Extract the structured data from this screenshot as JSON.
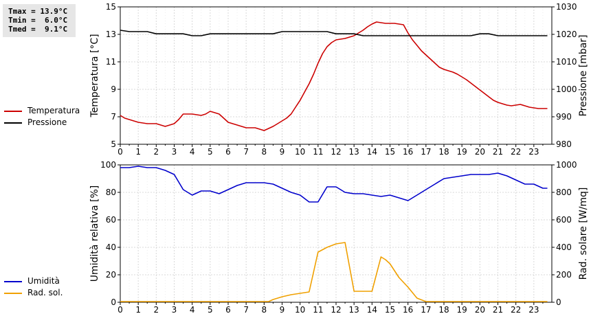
{
  "stats": {
    "lines": [
      "Tmax = 13.9°C",
      "Tmin =  6.0°C",
      "Tmed =  9.1°C"
    ]
  },
  "chart_data": [
    {
      "type": "line",
      "x_ticks": [
        0,
        1,
        2,
        3,
        4,
        5,
        6,
        7,
        8,
        9,
        10,
        11,
        12,
        13,
        14,
        15,
        16,
        17,
        18,
        19,
        20,
        21,
        22,
        23
      ],
      "xlim": [
        0,
        24
      ],
      "ylabel": "Temperatura [°C]",
      "ylabel_right": "Pressione [mbar]",
      "ylim": [
        5,
        15
      ],
      "y_ticks": [
        5,
        7,
        9,
        11,
        13,
        15
      ],
      "ylim_right": [
        980,
        1030
      ],
      "y_ticks_right": [
        980,
        990,
        1000,
        1010,
        1020,
        1030
      ],
      "grid": true,
      "legend_position": "left",
      "series": [
        {
          "name": "Temperatura",
          "color": "#cc0000",
          "axis": "left",
          "x": [
            0,
            0.25,
            0.5,
            0.75,
            1,
            1.25,
            1.5,
            1.75,
            2,
            2.25,
            2.5,
            2.75,
            3,
            3.25,
            3.5,
            3.75,
            4,
            4.25,
            4.5,
            4.75,
            5,
            5.25,
            5.5,
            5.75,
            6,
            6.25,
            6.5,
            6.75,
            7,
            7.25,
            7.5,
            7.75,
            8,
            8.25,
            8.5,
            8.75,
            9,
            9.25,
            9.5,
            9.75,
            10,
            10.25,
            10.5,
            10.75,
            11,
            11.25,
            11.5,
            11.75,
            12,
            12.25,
            12.5,
            12.75,
            13,
            13.25,
            13.5,
            13.75,
            14,
            14.25,
            14.5,
            14.75,
            15,
            15.25,
            15.5,
            15.75,
            16,
            16.25,
            16.5,
            16.75,
            17,
            17.25,
            17.5,
            17.75,
            18,
            18.25,
            18.5,
            18.75,
            19,
            19.25,
            19.5,
            19.75,
            20,
            20.25,
            20.5,
            20.75,
            21,
            21.25,
            21.5,
            21.75,
            22,
            22.25,
            22.5,
            22.75,
            23,
            23.25,
            23.5,
            23.75
          ],
          "values": [
            7.1,
            6.9,
            6.8,
            6.7,
            6.6,
            6.55,
            6.5,
            6.5,
            6.5,
            6.4,
            6.3,
            6.4,
            6.5,
            6.8,
            7.2,
            7.2,
            7.2,
            7.15,
            7.1,
            7.2,
            7.4,
            7.3,
            7.2,
            6.9,
            6.6,
            6.5,
            6.4,
            6.3,
            6.2,
            6.2,
            6.2,
            6.1,
            6.0,
            6.15,
            6.3,
            6.5,
            6.7,
            6.9,
            7.2,
            7.7,
            8.2,
            8.8,
            9.4,
            10.1,
            10.9,
            11.6,
            12.1,
            12.4,
            12.6,
            12.65,
            12.7,
            12.8,
            12.9,
            13.1,
            13.3,
            13.55,
            13.75,
            13.9,
            13.85,
            13.8,
            13.8,
            13.8,
            13.75,
            13.7,
            13.1,
            12.6,
            12.2,
            11.8,
            11.5,
            11.2,
            10.9,
            10.6,
            10.45,
            10.35,
            10.25,
            10.1,
            9.9,
            9.7,
            9.45,
            9.2,
            8.95,
            8.7,
            8.45,
            8.2,
            8.05,
            7.95,
            7.85,
            7.8,
            7.85,
            7.9,
            7.8,
            7.7,
            7.65,
            7.6,
            7.6,
            7.6
          ]
        },
        {
          "name": "Pressione",
          "color": "#000000",
          "axis": "right",
          "x": [
            0,
            0.5,
            1,
            1.5,
            2,
            2.5,
            3,
            3.5,
            4,
            4.5,
            5,
            5.5,
            6,
            6.5,
            7,
            7.5,
            8,
            8.5,
            9,
            9.5,
            10,
            10.5,
            11,
            11.5,
            12,
            12.5,
            13,
            13.5,
            14,
            14.5,
            15,
            15.5,
            16,
            16.5,
            17,
            17.5,
            18,
            18.5,
            19,
            19.5,
            20,
            20.5,
            21,
            21.5,
            22,
            22.5,
            23,
            23.5,
            23.75
          ],
          "values": [
            1021.5,
            1021,
            1021,
            1021,
            1020.2,
            1020.2,
            1020.2,
            1020.2,
            1019.5,
            1019.5,
            1020.2,
            1020.2,
            1020.2,
            1020.2,
            1020.2,
            1020.2,
            1020.2,
            1020.2,
            1021,
            1021,
            1021,
            1021,
            1021,
            1021,
            1020.2,
            1020.2,
            1020.2,
            1019.5,
            1019.5,
            1019.5,
            1019.5,
            1019.5,
            1019.5,
            1019.5,
            1019.5,
            1019.5,
            1019.5,
            1019.5,
            1019.5,
            1019.5,
            1020.2,
            1020.2,
            1019.5,
            1019.5,
            1019.5,
            1019.5,
            1019.5,
            1019.5,
            1019.5
          ]
        }
      ]
    },
    {
      "type": "line",
      "x_ticks": [
        0,
        1,
        2,
        3,
        4,
        5,
        6,
        7,
        8,
        9,
        10,
        11,
        12,
        13,
        14,
        15,
        16,
        17,
        18,
        19,
        20,
        21,
        22,
        23
      ],
      "xlim": [
        0,
        24
      ],
      "ylabel": "Umidità relativa [%]",
      "ylabel_right": "Rad. solare [W/mq]",
      "ylim": [
        0,
        100
      ],
      "y_ticks": [
        0,
        20,
        40,
        60,
        80,
        100
      ],
      "ylim_right": [
        0,
        1000
      ],
      "y_ticks_right": [
        0,
        200,
        400,
        600,
        800,
        1000
      ],
      "grid": true,
      "legend_position": "left",
      "series": [
        {
          "name": "Umidità",
          "color": "#0000cc",
          "axis": "left",
          "x": [
            0,
            0.5,
            1,
            1.5,
            2,
            2.5,
            3,
            3.5,
            4,
            4.5,
            5,
            5.5,
            6,
            6.5,
            7,
            7.5,
            8,
            8.5,
            9,
            9.5,
            10,
            10.5,
            11,
            11.5,
            12,
            12.5,
            13,
            13.5,
            14,
            14.5,
            15,
            15.5,
            16,
            16.5,
            17,
            17.5,
            18,
            18.5,
            19,
            19.5,
            20,
            20.5,
            21,
            21.5,
            22,
            22.5,
            23,
            23.5,
            23.75
          ],
          "values": [
            98,
            98,
            99,
            98,
            98,
            96,
            93,
            82,
            78,
            81,
            81,
            79,
            82,
            85,
            87,
            87,
            87,
            86,
            83,
            80,
            78,
            73,
            73,
            84,
            84,
            80,
            79,
            79,
            78,
            77,
            78,
            76,
            74,
            78,
            82,
            86,
            90,
            91,
            92,
            93,
            93,
            93,
            94,
            92,
            89,
            86,
            86,
            83,
            83
          ]
        },
        {
          "name": "Rad. sol.",
          "color": "#f0a000",
          "axis": "right",
          "x": [
            0,
            1,
            2,
            3,
            4,
            5,
            6,
            7,
            8,
            8.25,
            8.5,
            9,
            9.5,
            10,
            10.5,
            11,
            11.5,
            12,
            12.5,
            13,
            13.5,
            14,
            14.5,
            14.75,
            15,
            15.5,
            16,
            16.5,
            17,
            18,
            19,
            20,
            21,
            22,
            23,
            23.75
          ],
          "values": [
            5,
            5,
            5,
            5,
            5,
            5,
            5,
            5,
            5,
            5,
            20,
            40,
            55,
            65,
            75,
            365,
            400,
            425,
            435,
            80,
            80,
            80,
            330,
            310,
            280,
            180,
            110,
            30,
            5,
            5,
            5,
            5,
            5,
            5,
            5,
            5
          ]
        }
      ]
    }
  ]
}
